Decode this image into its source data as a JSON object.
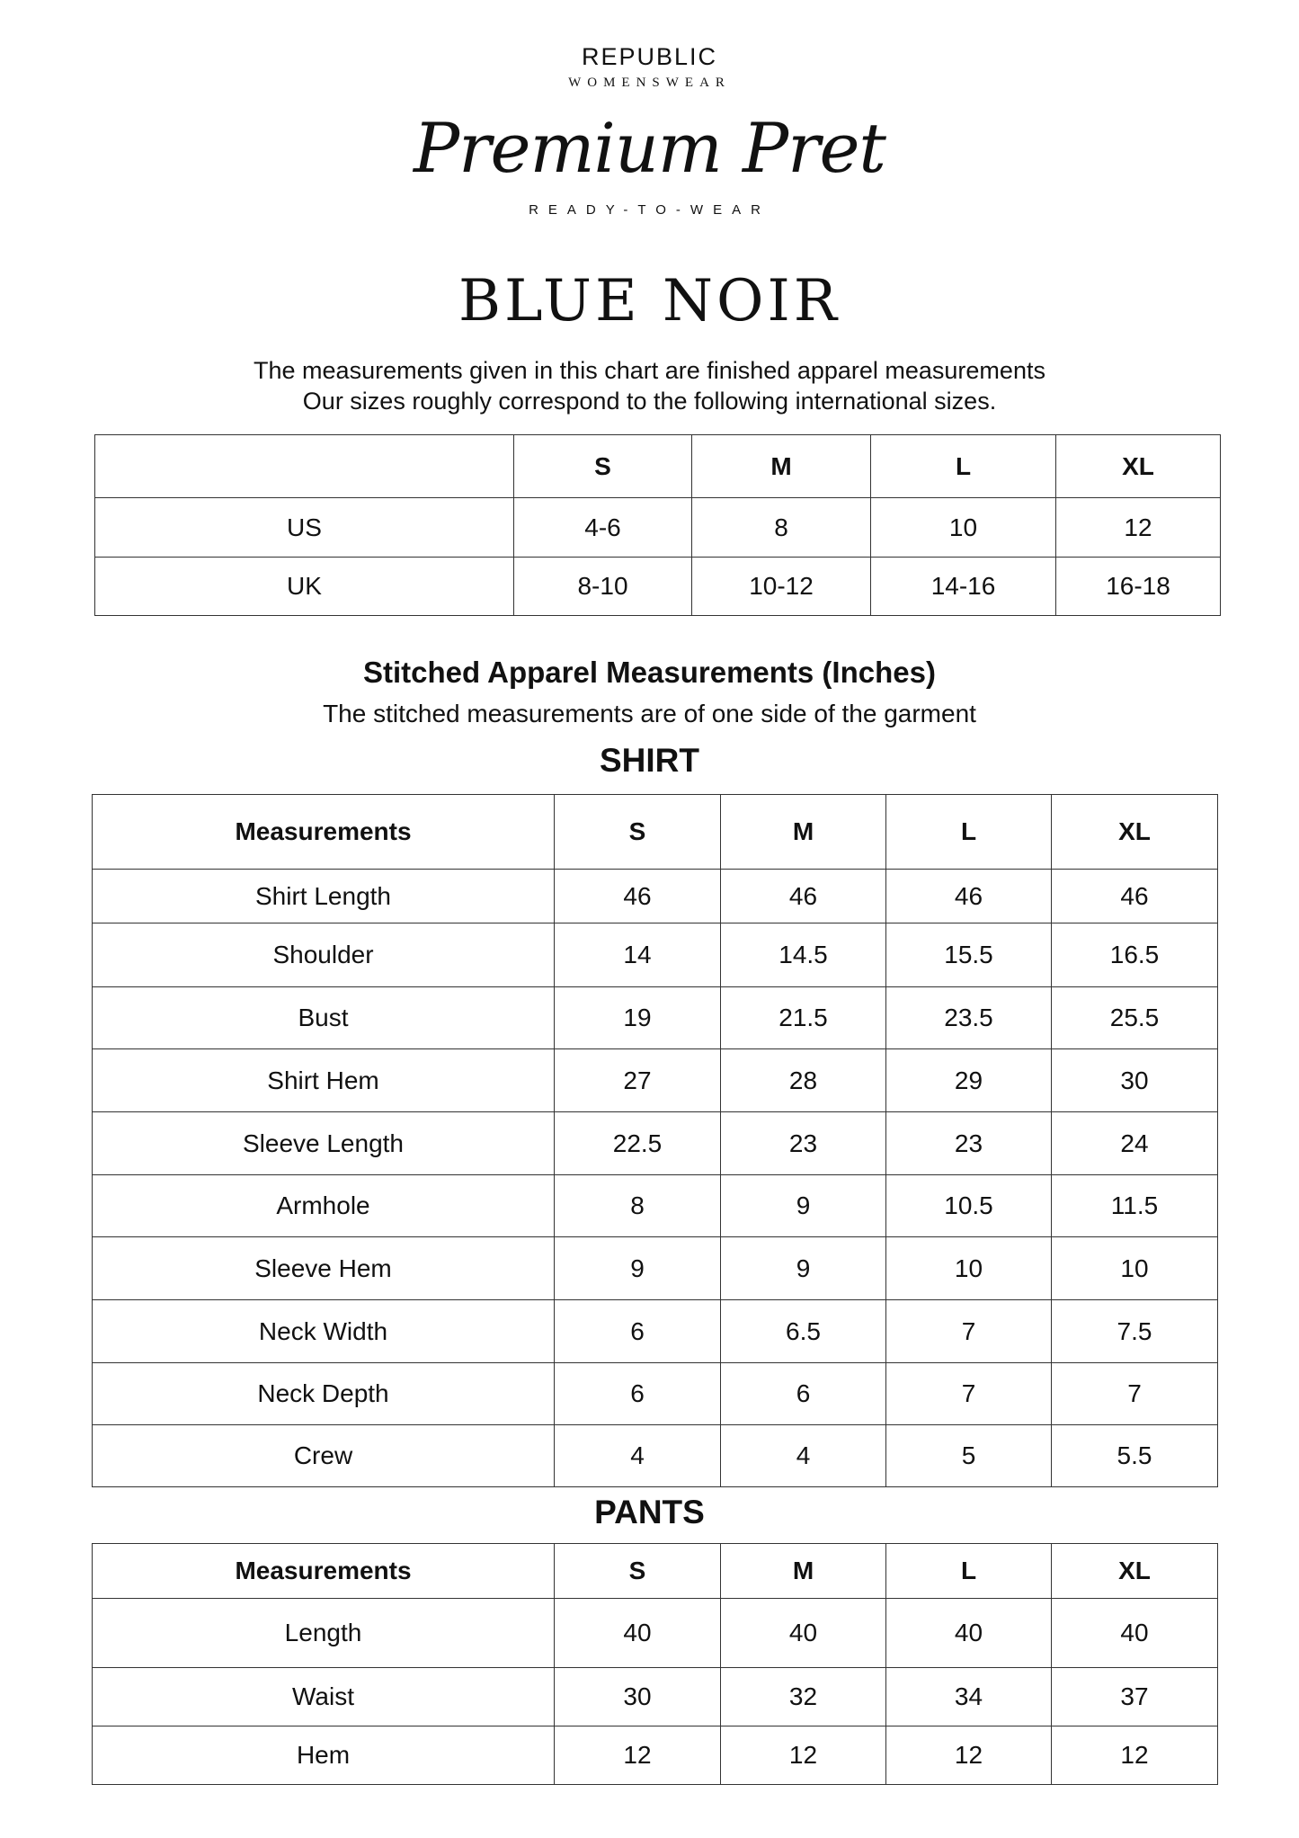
{
  "header": {
    "brand": "REPUBLIC",
    "brand_sub": "WOMENSWEAR",
    "line": "Premium Pret",
    "line_sub": "READY-TO-WEAR",
    "collection": "BLUE NOIR"
  },
  "intro": {
    "line1": "The measurements given in this chart are finished apparel measurements",
    "line2": "Our sizes roughly correspond to the following international sizes."
  },
  "intl_table": {
    "headers": [
      "",
      "S",
      "M",
      "L",
      "XL"
    ],
    "rows": [
      [
        "US",
        "4-6",
        "8",
        "10",
        "12"
      ],
      [
        "UK",
        "8-10",
        "10-12",
        "14-16",
        "16-18"
      ]
    ]
  },
  "stitched": {
    "heading": "Stitched Apparel Measurements (Inches)",
    "subtitle": "The stitched measurements are of one side of the garment"
  },
  "shirt": {
    "title": "SHIRT",
    "headers": [
      "Measurements",
      "S",
      "M",
      "L",
      "XL"
    ],
    "rows": [
      [
        "Shirt Length",
        "46",
        "46",
        "46",
        "46"
      ],
      [
        "Shoulder",
        "14",
        "14.5",
        "15.5",
        "16.5"
      ],
      [
        "Bust",
        "19",
        "21.5",
        "23.5",
        "25.5"
      ],
      [
        "Shirt Hem",
        "27",
        "28",
        "29",
        "30"
      ],
      [
        "Sleeve Length",
        "22.5",
        "23",
        "23",
        "24"
      ],
      [
        "Armhole",
        "8",
        "9",
        "10.5",
        "11.5"
      ],
      [
        "Sleeve Hem",
        "9",
        "9",
        "10",
        "10"
      ],
      [
        "Neck Width",
        "6",
        "6.5",
        "7",
        "7.5"
      ],
      [
        "Neck Depth",
        "6",
        "6",
        "7",
        "7"
      ],
      [
        "Crew",
        "4",
        "4",
        "5",
        "5.5"
      ]
    ]
  },
  "pants": {
    "title": "PANTS",
    "headers": [
      "Measurements",
      "S",
      "M",
      "L",
      "XL"
    ],
    "rows": [
      [
        "Length",
        "40",
        "40",
        "40",
        "40"
      ],
      [
        "Waist",
        "30",
        "32",
        "34",
        "37"
      ],
      [
        "Hem",
        "12",
        "12",
        "12",
        "12"
      ]
    ]
  }
}
